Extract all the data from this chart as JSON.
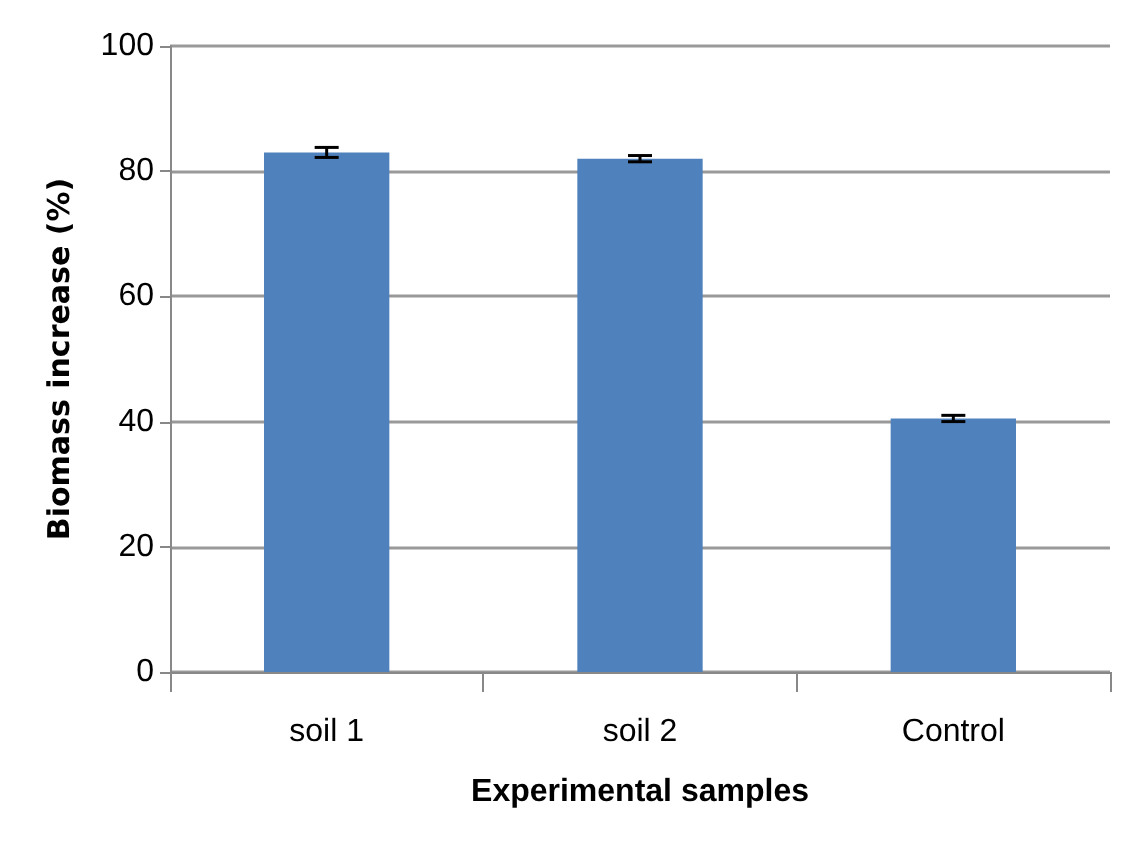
{
  "chart_data": {
    "type": "bar",
    "xlabel": "Experimental samples",
    "ylabel": "Biomass increase (%)",
    "categories": [
      "soil 1",
      "soil 2",
      "Control"
    ],
    "values": [
      83,
      82,
      40.5
    ],
    "errors": [
      0.8,
      0.5,
      0.5
    ],
    "color": "#4f81bd",
    "ylim": [
      0,
      100
    ],
    "yticks": [
      0,
      20,
      40,
      60,
      80,
      100
    ],
    "grid": "y"
  }
}
